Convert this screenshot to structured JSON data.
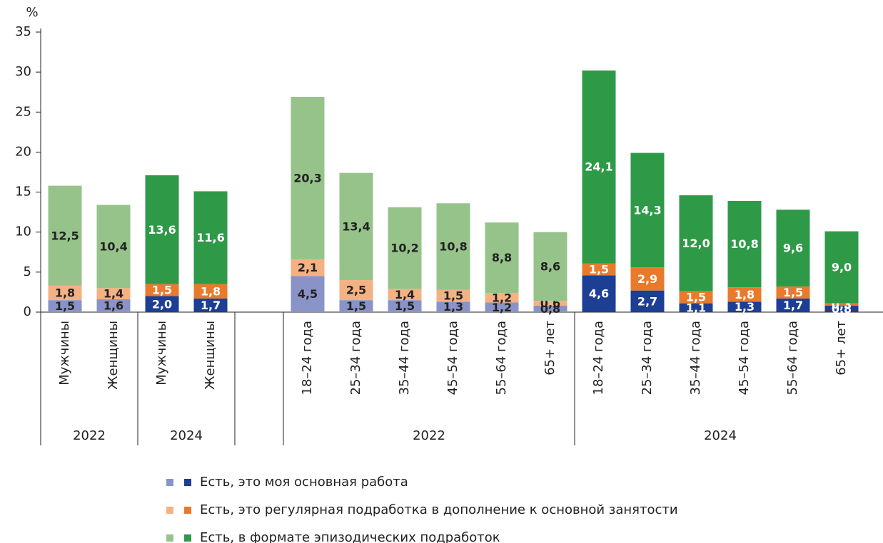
{
  "chart_data": {
    "type": "stacked_bar",
    "y_label": "%",
    "ylim": [
      0,
      35
    ],
    "yticks": [
      0,
      5,
      10,
      15,
      20,
      25,
      30,
      35
    ],
    "grid": false,
    "categories": [
      "Мужчины",
      "Женщины",
      "Мужчины",
      "Женщины",
      null,
      "18–24 года",
      "25–34 года",
      "35–44 года",
      "45–54 года",
      "55–64 года",
      "65+ лет",
      "18–24 года",
      "25–34 года",
      "35–44 года",
      "45–54 года",
      "55–64 года",
      "65+ лет"
    ],
    "x_groups": [
      {
        "label": "2022",
        "span": 2,
        "shade": "light"
      },
      {
        "label": "2024",
        "span": 2,
        "shade": "dark"
      },
      {
        "label": null,
        "span": 1,
        "shade": "light"
      },
      {
        "label": "2022",
        "span": 6,
        "shade": "light"
      },
      {
        "label": "2024",
        "span": 6,
        "shade": "dark"
      }
    ],
    "series": [
      {
        "name": "Есть, это моя основная работа",
        "colors": {
          "light": "#8a93c8",
          "dark": "#1d3f93"
        },
        "values": [
          1.5,
          1.6,
          2.0,
          1.7,
          null,
          4.5,
          1.5,
          1.5,
          1.3,
          1.2,
          0.8,
          4.6,
          2.7,
          1.1,
          1.3,
          1.7,
          0.8
        ],
        "value_labels": [
          "1,5",
          "1,6",
          "2,0",
          "1,7",
          null,
          "4,5",
          "1,5",
          "1,5",
          "1,3",
          "1,2",
          "0,8",
          "4,6",
          "2,7",
          "1,1",
          "1,3",
          "1,7",
          "0,8"
        ]
      },
      {
        "name": "Есть, это регулярная подработка в дополнение к основной занятости",
        "colors": {
          "light": "#f4b183",
          "dark": "#e97a2c"
        },
        "values": [
          1.8,
          1.4,
          1.5,
          1.8,
          null,
          2.1,
          2.5,
          1.4,
          1.5,
          1.2,
          0.6,
          1.5,
          2.9,
          1.5,
          1.8,
          1.5,
          0.3
        ],
        "value_labels": [
          "1,8",
          "1,4",
          "1,5",
          "1,8",
          null,
          "2,1",
          "2,5",
          "1,4",
          "1,5",
          "1,2",
          "0,6",
          "1,5",
          "2,9",
          "1,5",
          "1,8",
          "1,5",
          "0,3"
        ]
      },
      {
        "name": "Есть, в формате эпизодических подработок",
        "colors": {
          "light": "#96c38a",
          "dark": "#2e9a48"
        },
        "values": [
          12.5,
          10.4,
          13.6,
          11.6,
          null,
          20.3,
          13.4,
          10.2,
          10.8,
          8.8,
          8.6,
          24.1,
          14.3,
          12.0,
          10.8,
          9.6,
          9.0
        ],
        "value_labels": [
          "12,5",
          "10,4",
          "13,6",
          "11,6",
          null,
          "20,3",
          "13,4",
          "10,2",
          "10,8",
          "8,8",
          "8,6",
          "24,1",
          "14,3",
          "12,0",
          "10,8",
          "9,6",
          "9,0"
        ]
      }
    ]
  }
}
